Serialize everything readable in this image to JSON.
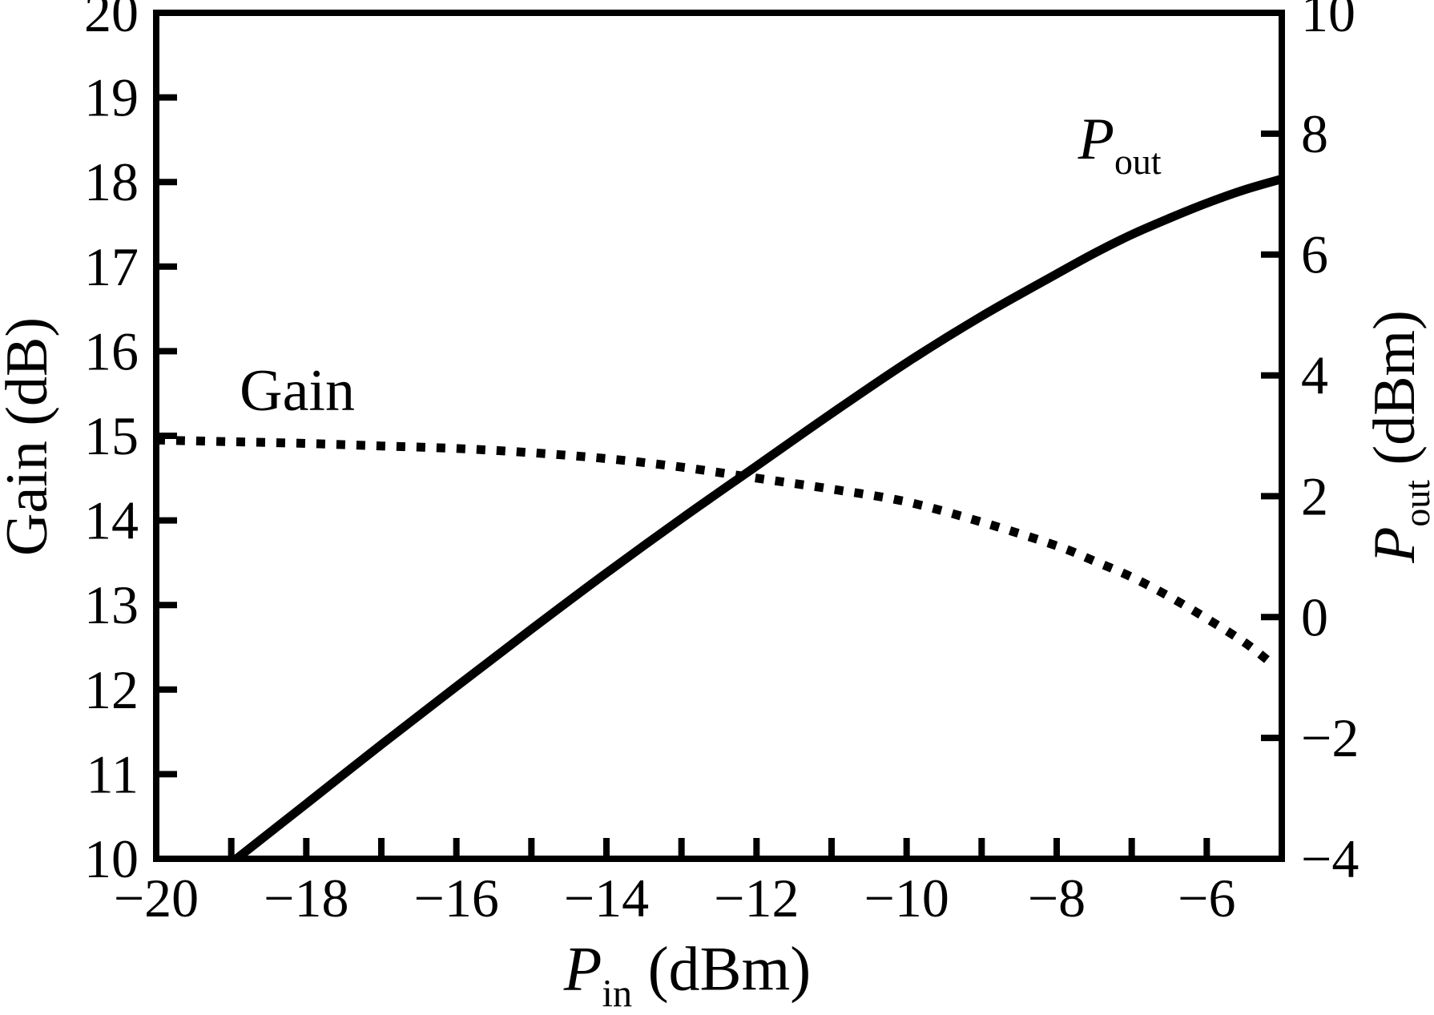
{
  "colors": {
    "foreground": "#000000",
    "background": "#ffffff"
  },
  "chart_data": {
    "type": "line",
    "title": "",
    "grid": false,
    "legend": "none (curves labeled by in-plot annotations)",
    "axis_labels": {
      "x": {
        "symbol": "P",
        "sub": "in",
        "unit": " (dBm)"
      },
      "y_left": {
        "text": "Gain (dB)"
      },
      "y_right": {
        "symbol": "P",
        "sub": "out",
        "unit": " (dBm)"
      }
    },
    "x_axis": {
      "min": -20,
      "max": -5,
      "tick_values": [
        -19,
        -18,
        -17,
        -16,
        -15,
        -14,
        -13,
        -12,
        -11,
        -10,
        -9,
        -8,
        -7,
        -6
      ],
      "label_values": [
        -20,
        -18,
        -16,
        -14,
        -12,
        -10,
        -8,
        -6
      ],
      "labels": [
        "−20",
        "−18",
        "−16",
        "−14",
        "−12",
        "−10",
        "−8",
        "−6"
      ]
    },
    "y_left_axis": {
      "min": 10,
      "max": 20,
      "tick_values": [
        11,
        12,
        13,
        14,
        15,
        16,
        17,
        18,
        19
      ],
      "label_values": [
        10,
        11,
        12,
        13,
        14,
        15,
        16,
        17,
        18,
        19,
        20
      ],
      "labels": [
        "10",
        "11",
        "12",
        "13",
        "14",
        "15",
        "16",
        "17",
        "18",
        "19",
        "20"
      ]
    },
    "y_right_axis": {
      "min": -4,
      "max": 10,
      "tick_values": [
        -2,
        0,
        2,
        4,
        6,
        8
      ],
      "label_values": [
        -4,
        -2,
        0,
        2,
        4,
        6,
        8,
        10
      ],
      "labels": [
        "−4",
        "−2",
        "0",
        "2",
        "4",
        "6",
        "8",
        "10"
      ]
    },
    "series": [
      {
        "name": "Gain",
        "axis": "left",
        "style": "dotted",
        "x": [
          -20,
          -19,
          -18,
          -17,
          -16,
          -15,
          -14,
          -13,
          -12,
          -11,
          -10,
          -9,
          -8,
          -7.5,
          -7,
          -6.5,
          -6,
          -5.5,
          -5.15
        ],
        "y": [
          14.95,
          14.93,
          14.91,
          14.88,
          14.85,
          14.8,
          14.73,
          14.63,
          14.5,
          14.37,
          14.22,
          13.98,
          13.7,
          13.52,
          13.33,
          13.1,
          12.84,
          12.56,
          12.32
        ]
      },
      {
        "name": "Pout",
        "axis": "right",
        "style": "solid",
        "x": [
          -18.93,
          -18,
          -17,
          -16,
          -15,
          -14,
          -13,
          -12,
          -11,
          -10,
          -9,
          -8,
          -7.5,
          -7,
          -6.5,
          -6,
          -5.5,
          -5
        ],
        "y": [
          -4.0,
          -3.09,
          -2.11,
          -1.15,
          -0.2,
          0.73,
          1.63,
          2.5,
          3.37,
          4.21,
          4.98,
          5.68,
          6.02,
          6.33,
          6.6,
          6.85,
          7.07,
          7.25
        ]
      }
    ],
    "annotations": {
      "gain": {
        "text": "Gain",
        "x": -18.12,
        "y_left": 15.53
      },
      "pout": {
        "symbol": "P",
        "sub": "out",
        "x": -7.16,
        "y_right": 7.81
      }
    }
  }
}
